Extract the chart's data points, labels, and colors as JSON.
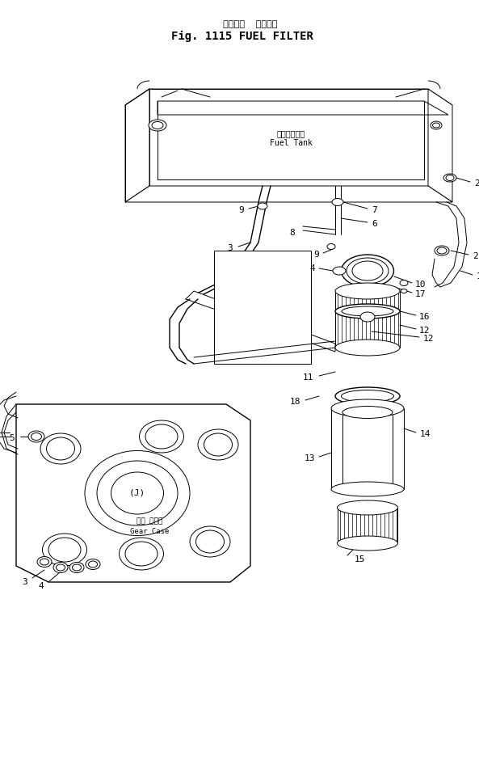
{
  "title_japanese": "フェルル  フィルタ",
  "title_english": "Fig. 1115 FUEL FILTER",
  "bg_color": "#ffffff",
  "line_color": "#000000",
  "fuel_tank_jp": "フェルタンク",
  "fuel_tank_en": "Fuel Tank",
  "gear_case_jp": "ギヤ ケース",
  "gear_case_en": "Gear Case"
}
